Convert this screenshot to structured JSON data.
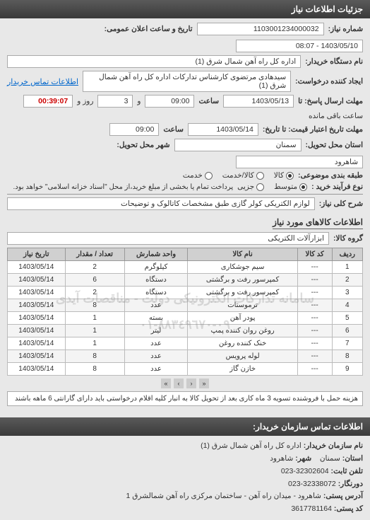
{
  "header": {
    "title": "جزئیات اطلاعات نیاز"
  },
  "requestInfo": {
    "reqNumberLabel": "شماره نیاز:",
    "reqNumber": "1103001234000032",
    "annDateLabel": "تاریخ و ساعت اعلان عمومی:",
    "annDate": "1403/05/10 - 08:07",
    "buyerNameLabel": "نام دستگاه خریدار:",
    "buyerName": "اداره کل راه آهن شمال شرق (1)",
    "requesterLabel": "ایجاد کننده درخواست:",
    "requester": "سیدهادی مرتضوی کارشناس تدارکات اداره کل راه آهن شمال شرق (1)",
    "contactLink": "اطلاعات تماس خریدار",
    "responseDeadlineLabel": "مهلت ارسال پاسخ: تا",
    "responseDate": "1403/05/13",
    "timeLabel": "ساعت",
    "responseTime": "09:00",
    "andLabel": "و",
    "dayCount": "3",
    "dayLabel": "روز و",
    "remainLabel": "ساعت باقی مانده",
    "timer": "00:39:07",
    "validDeadlineLabel": "مهلت تاریخ اعتبار قیمت: تا تاریخ:",
    "validDate": "1403/05/14",
    "validTime": "09:00",
    "provinceLabel": "استان محل تحویل:",
    "province": "سمنان",
    "cityLabel": "شهر محل تحویل:",
    "city": "شاهرود",
    "budgetLabel": "طبقه بندی موضوعی:",
    "budgetOptions": [
      {
        "label": "کالا",
        "checked": true
      },
      {
        "label": "کالا/خدمت",
        "checked": false
      },
      {
        "label": "خدمت",
        "checked": false
      }
    ],
    "buyTypeLabel": "نوع فرآیند خرید :",
    "buyTypeOptions": [
      {
        "label": "متوسط",
        "checked": true
      },
      {
        "label": "جزیی",
        "checked": false
      }
    ],
    "buyTypeNote": "پرداخت تمام یا بخشی از مبلغ خرید،از محل \"اسناد خزانه اسلامی\" خواهد بود."
  },
  "desc": {
    "label": "شرح کلی نیاز:",
    "value": "لوازم الکتریکی کولر گازی طبق مشخصات کاتالوک و توضیحات"
  },
  "goodsSection": {
    "title": "اطلاعات کالاهای مورد نیاز",
    "groupLabel": "گروه کالا:",
    "groupValue": "ابزارآلات الکتریکی"
  },
  "table": {
    "columns": [
      "ردیف",
      "کد کالا",
      "نام کالا",
      "واحد شمارش",
      "تعداد / مقدار",
      "تاریخ نیاز"
    ],
    "rows": [
      [
        "1",
        "---",
        "سیم جوشکاری",
        "کیلوگرم",
        "2",
        "1403/05/14"
      ],
      [
        "2",
        "---",
        "کمپرسور رفت و برگشتی",
        "دستگاه",
        "6",
        "1403/05/14"
      ],
      [
        "3",
        "---",
        "کمپرسور رفت و برگشتی",
        "دستگاه",
        "2",
        "1403/05/14"
      ],
      [
        "4",
        "---",
        "ترموستات",
        "عدد",
        "8",
        "1403/05/14"
      ],
      [
        "5",
        "---",
        "پودر آهن",
        "بسته",
        "1",
        "1403/05/14"
      ],
      [
        "6",
        "---",
        "روغن روان کننده پمپ",
        "لیتر",
        "1",
        "1403/05/14"
      ],
      [
        "7",
        "---",
        "خنک کننده روغن",
        "عدد",
        "1",
        "1403/05/14"
      ],
      [
        "8",
        "---",
        "لوله پرویس",
        "عدد",
        "8",
        "1403/05/14"
      ],
      [
        "9",
        "---",
        "خازن گاز",
        "عدد",
        "8",
        "1403/05/14"
      ]
    ],
    "watermark1": "سامانه تدارکات الکترونیکی دولت - مناقصات آیدی",
    "watermark2": "٠٩-٨٨٣٤٩٦٧٠-٠١"
  },
  "note": "هزینه حمل با فروشنده تسویه 3 ماه کاری بعد از تحویل کالا به انبار کلیه اقلام درخواستی باید دارای گارانتی 6 ماهه باشند",
  "footer": {
    "title": "اطلاعات تماس سازمان خریدار:",
    "orgLabel": "نام سازمان خریدار:",
    "orgValue": "اداره کل راه آهن شمال شرق (1)",
    "cityLabel": "شهر:",
    "cityValue": "شاهرود",
    "provinceLabel": "استان:",
    "provinceValue": "سمنان",
    "phoneLabel": "تلفن ثابت:",
    "phoneValue": "32302604-023",
    "faxLabel": "دورنگار:",
    "faxValue": "32338072-023",
    "addrLabel": "آدرس پستی:",
    "addrValue": "شاهرود - میدان راه آهن - ساختمان مرکزی راه آهن شمالشرق 1",
    "postalLabel": "کد پستی:",
    "postalValue": "3617781164"
  },
  "pagination": {
    "prev": "‹",
    "next": "›",
    "first": "«",
    "last": "»"
  }
}
